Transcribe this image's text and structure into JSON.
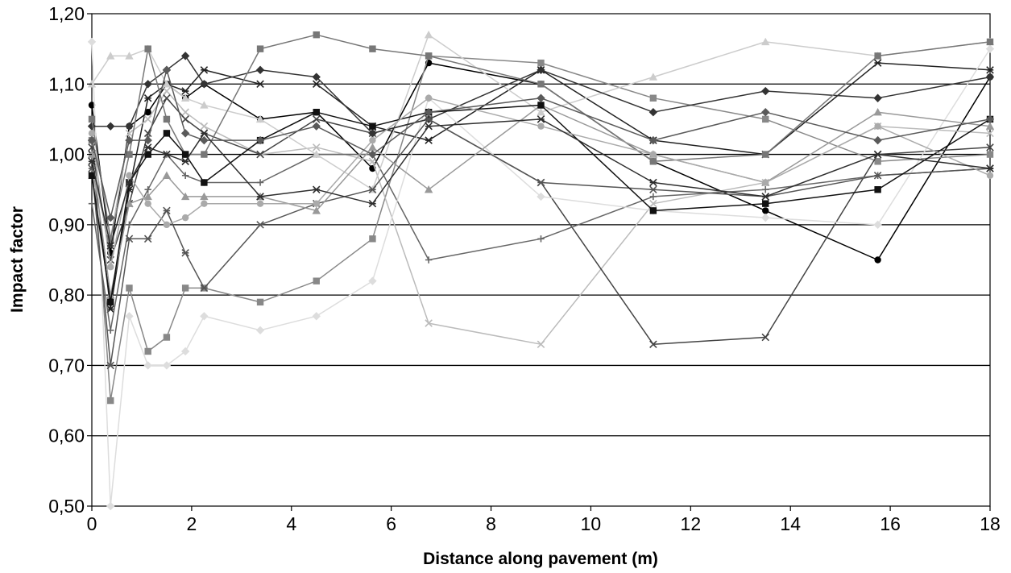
{
  "chart_data": {
    "type": "line",
    "title": "",
    "xlabel": "Distance along pavement (m)",
    "ylabel": "Impact factor",
    "xlim": [
      0,
      18
    ],
    "ylim": [
      0.5,
      1.2
    ],
    "x_ticks": [
      0,
      2,
      4,
      6,
      8,
      10,
      12,
      14,
      16,
      18
    ],
    "x_tick_labels": [
      "0",
      "2",
      "4",
      "6",
      "8",
      "10",
      "12",
      "14",
      "16",
      "18"
    ],
    "y_ticks": [
      0.5,
      0.6,
      0.7,
      0.8,
      0.9,
      1.0,
      1.1,
      1.2
    ],
    "y_tick_labels": [
      "0,50",
      "0,60",
      "0,70",
      "0,80",
      "0,90",
      "1,00",
      "1,10",
      "1,20"
    ],
    "grid": "horizontal",
    "legend": "none",
    "x": [
      0,
      0.375,
      0.75,
      1.125,
      1.5,
      1.875,
      2.25,
      3.375,
      4.5,
      5.625,
      6.75,
      9.0,
      11.25,
      13.5,
      15.75,
      18
    ],
    "series": [
      {
        "color": "#000000",
        "marker": "circle",
        "values": [
          1.07,
          0.86,
          1.04,
          1.06,
          1.1,
          1.08,
          1.1,
          1.05,
          1.06,
          0.98,
          1.13,
          1.1,
          0.99,
          0.92,
          0.85,
          1.11
        ]
      },
      {
        "color": "#222222",
        "marker": "asterisk",
        "values": [
          1.0,
          0.78,
          0.95,
          1.08,
          1.1,
          1.09,
          1.12,
          1.1,
          1.1,
          1.04,
          1.02,
          1.12,
          1.02,
          1.0,
          1.13,
          1.12
        ]
      },
      {
        "color": "#888888",
        "marker": "square",
        "values": [
          1.02,
          0.65,
          0.81,
          0.72,
          0.74,
          0.81,
          0.81,
          0.79,
          0.82,
          0.88,
          1.14,
          1.13,
          1.08,
          1.05,
          0.99,
          1.0
        ]
      },
      {
        "color": "#bbbbbb",
        "marker": "x",
        "values": [
          0.97,
          0.88,
          1.03,
          1.05,
          1.09,
          1.06,
          1.04,
          1.0,
          1.01,
          0.99,
          0.76,
          0.73,
          0.93,
          0.96,
          1.04,
          1.03
        ]
      },
      {
        "color": "#444444",
        "marker": "x",
        "values": [
          1.01,
          0.85,
          0.93,
          1.03,
          1.08,
          1.05,
          1.03,
          1.0,
          1.05,
          1.03,
          1.05,
          0.96,
          0.73,
          0.74,
          1.0,
          1.01
        ]
      },
      {
        "color": "#666666",
        "marker": "plus",
        "values": [
          0.93,
          0.75,
          0.9,
          0.95,
          1.0,
          0.97,
          0.96,
          0.96,
          1.0,
          1.0,
          0.85,
          0.88,
          0.94,
          0.95,
          0.97,
          0.98
        ]
      },
      {
        "color": "#dddddd",
        "marker": "diamond",
        "values": [
          1.16,
          0.5,
          0.77,
          0.7,
          0.7,
          0.72,
          0.77,
          0.75,
          0.77,
          0.82,
          1.08,
          0.94,
          0.92,
          0.91,
          0.9,
          1.15
        ]
      },
      {
        "color": "#cccccc",
        "marker": "triangle",
        "values": [
          1.1,
          1.14,
          1.14,
          1.15,
          1.1,
          1.08,
          1.07,
          1.05,
          1.0,
          0.95,
          1.17,
          1.06,
          1.11,
          1.16,
          1.14,
          1.16
        ]
      },
      {
        "color": "#333333",
        "marker": "diamond",
        "values": [
          1.04,
          1.04,
          1.04,
          1.1,
          1.12,
          1.14,
          1.1,
          1.12,
          1.11,
          1.03,
          1.05,
          1.12,
          1.06,
          1.09,
          1.08,
          1.11
        ]
      },
      {
        "color": "#777777",
        "marker": "square",
        "values": [
          1.05,
          0.88,
          1.0,
          1.15,
          1.05,
          1.0,
          1.0,
          1.15,
          1.17,
          1.15,
          1.14,
          1.1,
          0.99,
          1.0,
          1.14,
          1.16
        ]
      },
      {
        "color": "#555555",
        "marker": "asterisk",
        "values": [
          0.98,
          0.7,
          0.88,
          0.88,
          0.92,
          0.86,
          0.81,
          0.9,
          0.93,
          0.95,
          1.05,
          0.96,
          0.95,
          0.94,
          0.97,
          0.98
        ]
      },
      {
        "color": "#999999",
        "marker": "triangle",
        "values": [
          1.0,
          0.8,
          0.93,
          0.94,
          0.97,
          0.94,
          0.94,
          0.94,
          0.92,
          1.01,
          0.95,
          1.07,
          1.0,
          0.96,
          1.06,
          1.04
        ]
      },
      {
        "color": "#111111",
        "marker": "square",
        "values": [
          0.97,
          0.79,
          0.96,
          1.0,
          1.03,
          1.0,
          0.96,
          1.02,
          1.06,
          1.04,
          1.06,
          1.07,
          0.92,
          0.93,
          0.95,
          1.05
        ]
      },
      {
        "color": "#aaaaaa",
        "marker": "circle",
        "values": [
          1.03,
          0.84,
          0.97,
          0.93,
          0.9,
          0.91,
          0.93,
          0.93,
          0.93,
          1.02,
          1.08,
          1.04,
          1.0,
          0.96,
          1.04,
          0.97
        ]
      },
      {
        "color": "#5a5a5a",
        "marker": "diamond",
        "values": [
          1.02,
          0.91,
          1.02,
          1.02,
          1.12,
          1.03,
          1.02,
          1.02,
          1.04,
          1.0,
          1.06,
          1.08,
          1.02,
          1.06,
          1.02,
          1.05
        ]
      },
      {
        "color": "#2e2e2e",
        "marker": "asterisk",
        "values": [
          0.99,
          0.87,
          0.96,
          1.01,
          1.0,
          0.99,
          1.03,
          0.94,
          0.95,
          0.93,
          1.04,
          1.05,
          0.96,
          0.94,
          1.0,
          0.98
        ]
      }
    ]
  }
}
